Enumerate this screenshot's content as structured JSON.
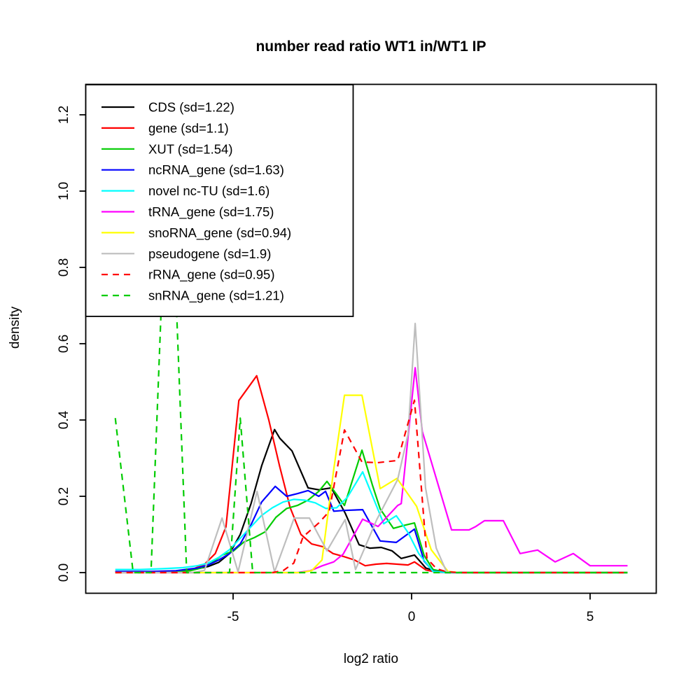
{
  "title": "number read ratio WT1 in/WT1 IP",
  "xlabel": "log2 ratio",
  "ylabel": "density",
  "axes": {
    "x_ticks": [
      {
        "label": "-5",
        "value": -5
      },
      {
        "label": "0",
        "value": 0
      },
      {
        "label": "5",
        "value": 5
      }
    ],
    "y_ticks": [
      {
        "label": "0.0",
        "value": 0.0
      },
      {
        "label": "0.2",
        "value": 0.2
      },
      {
        "label": "0.4",
        "value": 0.4
      },
      {
        "label": "0.6",
        "value": 0.6
      },
      {
        "label": "0.8",
        "value": 0.8
      },
      {
        "label": "1.0",
        "value": 1.0
      },
      {
        "label": "1.2",
        "value": 1.2
      }
    ]
  },
  "chart_data": {
    "type": "line",
    "title": "number read ratio WT1 in/WT1 IP",
    "xlabel": "log2 ratio",
    "ylabel": "density",
    "xlim": [
      -9.1,
      6.85
    ],
    "ylim": [
      -0.05,
      1.28
    ],
    "grid": false,
    "legend_position": "top-left",
    "series": [
      {
        "name": "CDS",
        "legend": "CDS (sd=1.22)",
        "sd": 1.22,
        "color": "#000000",
        "dashed": false,
        "points": [
          [
            -8.3,
            0.002
          ],
          [
            -7.6,
            0.002
          ],
          [
            -7.0,
            0.003
          ],
          [
            -6.4,
            0.005
          ],
          [
            -6.0,
            0.01
          ],
          [
            -5.7,
            0.016
          ],
          [
            -5.4,
            0.027
          ],
          [
            -5.1,
            0.05
          ],
          [
            -4.8,
            0.1
          ],
          [
            -4.5,
            0.18
          ],
          [
            -4.2,
            0.28
          ],
          [
            -3.84,
            0.375
          ],
          [
            -3.69,
            0.352
          ],
          [
            -3.35,
            0.319
          ],
          [
            -2.9,
            0.222
          ],
          [
            -2.6,
            0.217
          ],
          [
            -2.25,
            0.222
          ],
          [
            -1.86,
            0.156
          ],
          [
            -1.47,
            0.073
          ],
          [
            -1.17,
            0.064
          ],
          [
            -0.85,
            0.066
          ],
          [
            -0.55,
            0.057
          ],
          [
            -0.29,
            0.037
          ],
          [
            0.08,
            0.046
          ],
          [
            0.4,
            0.012
          ],
          [
            0.73,
            0.003
          ],
          [
            1.1,
            0.001
          ],
          [
            1.5,
            0
          ],
          [
            6.05,
            0
          ]
        ]
      },
      {
        "name": "gene",
        "legend": "gene (sd=1.1)",
        "sd": 1.1,
        "color": "#ff0000",
        "dashed": false,
        "points": [
          [
            -8.3,
            0.001
          ],
          [
            -7.0,
            0.001
          ],
          [
            -6.4,
            0.004
          ],
          [
            -6.1,
            0.01
          ],
          [
            -5.8,
            0.022
          ],
          [
            -5.5,
            0.05
          ],
          [
            -5.2,
            0.12
          ],
          [
            -4.84,
            0.451
          ],
          [
            -4.34,
            0.516
          ],
          [
            -4.0,
            0.4
          ],
          [
            -3.7,
            0.28
          ],
          [
            -3.4,
            0.17
          ],
          [
            -3.1,
            0.1
          ],
          [
            -2.8,
            0.075
          ],
          [
            -2.49,
            0.068
          ],
          [
            -2.2,
            0.05
          ],
          [
            -1.9,
            0.042
          ],
          [
            -1.6,
            0.033
          ],
          [
            -1.3,
            0.018
          ],
          [
            -1.0,
            0.022
          ],
          [
            -0.7,
            0.024
          ],
          [
            -0.4,
            0.022
          ],
          [
            -0.1,
            0.02
          ],
          [
            0.08,
            0.028
          ],
          [
            0.4,
            0.007
          ],
          [
            0.7,
            0.001
          ],
          [
            1.0,
            0
          ],
          [
            6.05,
            0
          ]
        ]
      },
      {
        "name": "XUT",
        "legend": "XUT (sd=1.54)",
        "sd": 1.54,
        "color": "#00cc00",
        "dashed": false,
        "points": [
          [
            -8.3,
            0
          ],
          [
            -6.8,
            0.001
          ],
          [
            -6.2,
            0.005
          ],
          [
            -5.9,
            0.012
          ],
          [
            -5.6,
            0.025
          ],
          [
            -5.3,
            0.046
          ],
          [
            -5.0,
            0.056
          ],
          [
            -4.7,
            0.08
          ],
          [
            -4.4,
            0.092
          ],
          [
            -4.1,
            0.107
          ],
          [
            -3.8,
            0.145
          ],
          [
            -3.5,
            0.168
          ],
          [
            -3.2,
            0.176
          ],
          [
            -2.9,
            0.19
          ],
          [
            -2.6,
            0.213
          ],
          [
            -2.37,
            0.239
          ],
          [
            -2.1,
            0.205
          ],
          [
            -1.88,
            0.176
          ],
          [
            -1.39,
            0.321
          ],
          [
            -1.1,
            0.23
          ],
          [
            -0.88,
            0.167
          ],
          [
            -0.51,
            0.116
          ],
          [
            -0.2,
            0.124
          ],
          [
            0.08,
            0.13
          ],
          [
            0.35,
            0.045
          ],
          [
            0.6,
            0.008
          ],
          [
            0.95,
            0.001
          ],
          [
            1.3,
            0
          ],
          [
            6.05,
            0
          ]
        ]
      },
      {
        "name": "ncRNA_gene",
        "legend": "ncRNA_gene (sd=1.63)",
        "sd": 1.63,
        "color": "#0000ff",
        "dashed": false,
        "points": [
          [
            -8.3,
            0.003
          ],
          [
            -7.3,
            0.003
          ],
          [
            -6.6,
            0.005
          ],
          [
            -6.0,
            0.012
          ],
          [
            -5.7,
            0.02
          ],
          [
            -5.4,
            0.033
          ],
          [
            -5.1,
            0.05
          ],
          [
            -4.8,
            0.075
          ],
          [
            -4.5,
            0.125
          ],
          [
            -4.2,
            0.185
          ],
          [
            -3.82,
            0.226
          ],
          [
            -3.5,
            0.2
          ],
          [
            -3.2,
            0.207
          ],
          [
            -2.9,
            0.215
          ],
          [
            -2.6,
            0.2
          ],
          [
            -2.41,
            0.213
          ],
          [
            -2.18,
            0.161
          ],
          [
            -1.9,
            0.163
          ],
          [
            -1.37,
            0.165
          ],
          [
            -0.88,
            0.083
          ],
          [
            -0.43,
            0.079
          ],
          [
            0.08,
            0.114
          ],
          [
            0.35,
            0.03
          ],
          [
            0.6,
            0.004
          ],
          [
            0.95,
            0
          ],
          [
            6.05,
            0
          ]
        ]
      },
      {
        "name": "novel nc-TU",
        "legend": "novel nc-TU (sd=1.6)",
        "sd": 1.6,
        "color": "#00ffff",
        "dashed": false,
        "points": [
          [
            -8.3,
            0.008
          ],
          [
            -7.6,
            0.008
          ],
          [
            -7.0,
            0.01
          ],
          [
            -6.4,
            0.013
          ],
          [
            -6.0,
            0.018
          ],
          [
            -5.7,
            0.025
          ],
          [
            -5.4,
            0.04
          ],
          [
            -5.1,
            0.06
          ],
          [
            -4.8,
            0.09
          ],
          [
            -4.5,
            0.12
          ],
          [
            -4.2,
            0.15
          ],
          [
            -3.9,
            0.17
          ],
          [
            -3.6,
            0.185
          ],
          [
            -3.3,
            0.192
          ],
          [
            -3.0,
            0.19
          ],
          [
            -2.7,
            0.183
          ],
          [
            -2.4,
            0.168
          ],
          [
            -2.1,
            0.17
          ],
          [
            -1.8,
            0.197
          ],
          [
            -1.37,
            0.264
          ],
          [
            -0.78,
            0.128
          ],
          [
            -0.43,
            0.149
          ],
          [
            -0.1,
            0.105
          ],
          [
            0.2,
            0.05
          ],
          [
            0.6,
            0.003
          ],
          [
            0.95,
            0
          ],
          [
            6.05,
            0
          ]
        ]
      },
      {
        "name": "tRNA_gene",
        "legend": "tRNA_gene (sd=1.75)",
        "sd": 1.75,
        "color": "#ff00ff",
        "dashed": false,
        "points": [
          [
            -8.3,
            0
          ],
          [
            -3.2,
            0
          ],
          [
            -2.84,
            0.005
          ],
          [
            -2.5,
            0.018
          ],
          [
            -2.18,
            0.028
          ],
          [
            -1.92,
            0.048
          ],
          [
            -1.37,
            0.14
          ],
          [
            -0.94,
            0.121
          ],
          [
            -0.39,
            0.176
          ],
          [
            -0.29,
            0.181
          ],
          [
            0.1,
            0.537
          ],
          [
            0.3,
            0.37
          ],
          [
            1.12,
            0.112
          ],
          [
            1.61,
            0.112
          ],
          [
            1.8,
            0.121
          ],
          [
            2.04,
            0.136
          ],
          [
            2.57,
            0.136
          ],
          [
            3.04,
            0.05
          ],
          [
            3.53,
            0.059
          ],
          [
            4.02,
            0.028
          ],
          [
            4.53,
            0.05
          ],
          [
            5.0,
            0.018
          ],
          [
            6.05,
            0.018
          ]
        ]
      },
      {
        "name": "snoRNA_gene",
        "legend": "snoRNA_gene (sd=0.94)",
        "sd": 0.94,
        "color": "#ffff00",
        "dashed": false,
        "points": [
          [
            -8.3,
            0
          ],
          [
            -3.1,
            0
          ],
          [
            -2.8,
            0.005
          ],
          [
            -2.51,
            0.033
          ],
          [
            -2.18,
            0.271
          ],
          [
            -1.88,
            0.465
          ],
          [
            -1.39,
            0.465
          ],
          [
            -0.88,
            0.22
          ],
          [
            -0.41,
            0.247
          ],
          [
            0.14,
            0.174
          ],
          [
            0.55,
            0.06
          ],
          [
            1.02,
            0.003
          ],
          [
            1.35,
            0
          ],
          [
            6.05,
            0
          ]
        ]
      },
      {
        "name": "pseudogene",
        "legend": "pseudogene (sd=1.9)",
        "sd": 1.9,
        "color": "#bebebe",
        "dashed": false,
        "points": [
          [
            -8.3,
            0
          ],
          [
            -6.1,
            0
          ],
          [
            -5.8,
            0.006
          ],
          [
            -5.31,
            0.143
          ],
          [
            -4.86,
            0.002
          ],
          [
            -4.33,
            0.213
          ],
          [
            -3.84,
            0.002
          ],
          [
            -3.29,
            0.143
          ],
          [
            -2.86,
            0.143
          ],
          [
            -2.37,
            0.057
          ],
          [
            -1.86,
            0.139
          ],
          [
            -1.57,
            0.008
          ],
          [
            -0.98,
            0.138
          ],
          [
            -0.39,
            0.244
          ],
          [
            -0.1,
            0.363
          ],
          [
            0.1,
            0.653
          ],
          [
            0.39,
            0.222
          ],
          [
            0.69,
            0.064
          ],
          [
            0.98,
            0.002
          ],
          [
            1.35,
            0
          ],
          [
            6.05,
            0
          ]
        ]
      },
      {
        "name": "rRNA_gene",
        "legend": "rRNA_gene (sd=0.95)",
        "sd": 0.95,
        "color": "#ff0000",
        "dashed": true,
        "points": [
          [
            -8.3,
            0
          ],
          [
            -3.9,
            0
          ],
          [
            -3.6,
            0.005
          ],
          [
            -3.3,
            0.025
          ],
          [
            -3.04,
            0.094
          ],
          [
            -2.6,
            0.13
          ],
          [
            -2.31,
            0.16
          ],
          [
            -1.88,
            0.374
          ],
          [
            -1.39,
            0.29
          ],
          [
            -0.95,
            0.288
          ],
          [
            -0.39,
            0.294
          ],
          [
            0.08,
            0.452
          ],
          [
            0.43,
            0.037
          ],
          [
            0.7,
            0.01
          ],
          [
            0.98,
            0.002
          ],
          [
            1.35,
            0
          ],
          [
            6.05,
            0
          ]
        ]
      },
      {
        "name": "snRNA_gene",
        "legend": "snRNA_gene (sd=1.21)",
        "sd": 1.21,
        "color": "#00cc00",
        "dashed": true,
        "points": [
          [
            -8.3,
            0.405
          ],
          [
            -7.8,
            0
          ],
          [
            -7.3,
            0
          ],
          [
            -6.95,
            0.85
          ],
          [
            -6.65,
            0.85
          ],
          [
            -6.3,
            0
          ],
          [
            -5.1,
            0
          ],
          [
            -4.8,
            0.405
          ],
          [
            -4.45,
            0
          ],
          [
            6.05,
            0
          ]
        ]
      }
    ]
  }
}
